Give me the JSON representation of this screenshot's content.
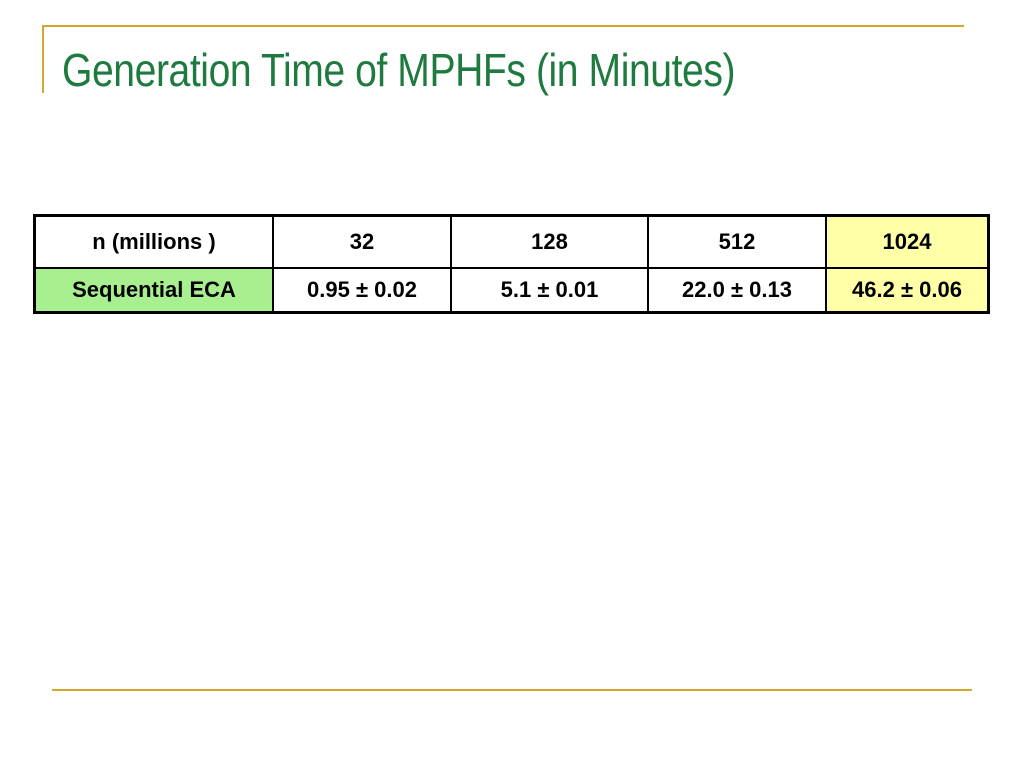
{
  "slide": {
    "title": "Generation Time of MPHFs (in Minutes)"
  },
  "table": {
    "header_row": {
      "label": "n (millions )",
      "values": [
        "32",
        "128",
        "512",
        "1024"
      ]
    },
    "data_row": {
      "label": "Sequential ECA",
      "values": [
        "0.95 ± 0.02",
        "5.1 ± 0.01",
        "22.0 ± 0.13",
        "46.2 ± 0.06"
      ]
    }
  },
  "colors": {
    "title": "#1e7a3e",
    "rule": "#d4a62a",
    "row_label_fill": "#a8f08f",
    "highlight_column_fill": "#ffffa8"
  }
}
